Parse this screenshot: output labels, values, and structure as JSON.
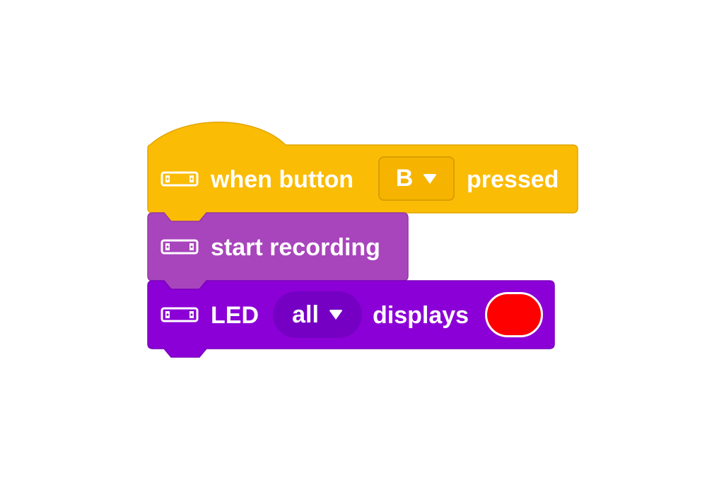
{
  "blocks": {
    "hat": {
      "prefix": "when button",
      "dropdown_value": "B",
      "suffix": "pressed",
      "color": "#fbbc05",
      "icon": "device-icon"
    },
    "record": {
      "label": "start recording",
      "color": "#a845bc",
      "icon": "device-icon"
    },
    "led": {
      "prefix": "LED",
      "dropdown_value": "all",
      "suffix": "displays",
      "swatch_color": "#ff0000",
      "color": "#8b00d6",
      "icon": "device-icon"
    }
  }
}
